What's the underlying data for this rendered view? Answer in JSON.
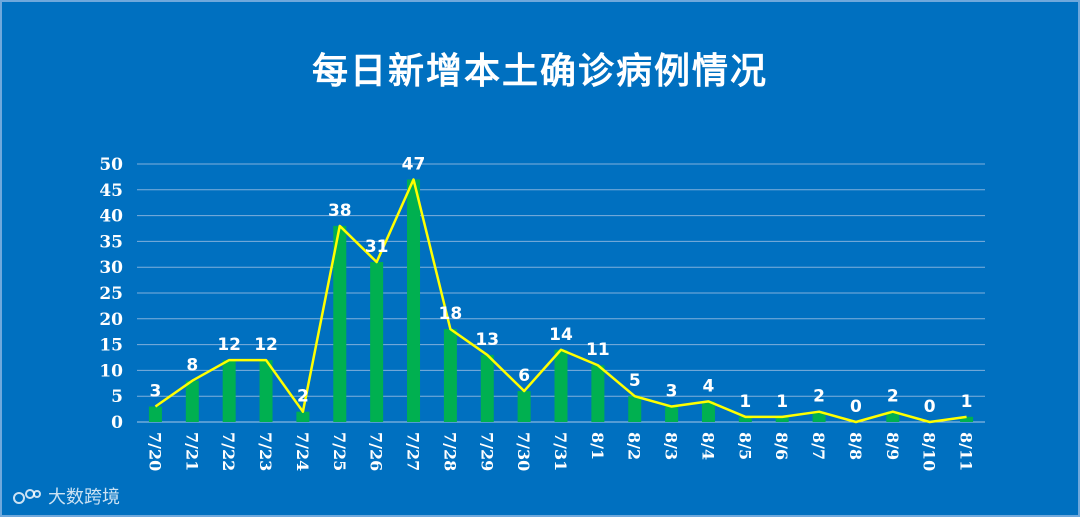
{
  "chart_data": {
    "type": "bar",
    "title": "每日新增本土确诊病例情况",
    "categories": [
      "7/20",
      "7/21",
      "7/22",
      "7/23",
      "7/24",
      "7/25",
      "7/26",
      "7/27",
      "7/28",
      "7/29",
      "7/30",
      "7/31",
      "8/1",
      "8/2",
      "8/3",
      "8/4",
      "8/5",
      "8/6",
      "8/7",
      "8/8",
      "8/9",
      "8/10",
      "8/11"
    ],
    "values": [
      3,
      8,
      12,
      12,
      2,
      38,
      31,
      47,
      18,
      13,
      6,
      14,
      11,
      5,
      3,
      4,
      1,
      1,
      2,
      0,
      2,
      0,
      1
    ],
    "ylim": [
      0,
      50
    ],
    "yticks": [
      0,
      5,
      10,
      15,
      20,
      25,
      30,
      35,
      40,
      45,
      50
    ],
    "overlay": "line",
    "grid": true,
    "colors": {
      "bar": "#00B050",
      "line": "#FFFF00",
      "background": "#0070C0",
      "text": "#FFFFFF"
    }
  },
  "watermark": {
    "text": "大数跨境"
  }
}
